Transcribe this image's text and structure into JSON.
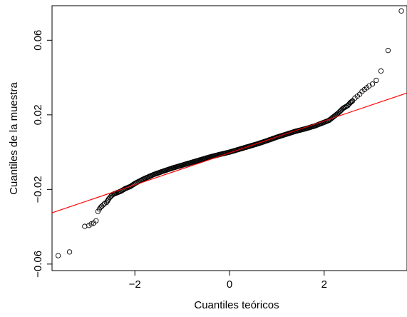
{
  "chart_data": {
    "type": "scatter",
    "title": "",
    "xlabel": "Cuantiles teóricos",
    "ylabel": "Cuantiles de la muestra",
    "xlim": [
      -3.75,
      3.75
    ],
    "ylim": [
      -0.0635,
      0.0785
    ],
    "xticks": [
      -2,
      0,
      2
    ],
    "xtick_labels": [
      "−2",
      "0",
      "2"
    ],
    "yticks": [
      -0.06,
      -0.02,
      0.02,
      0.06
    ],
    "ytick_labels": [
      "−0.06",
      "−0.02",
      "0.02",
      "0.06"
    ],
    "grid": false,
    "legend": "none",
    "point_color": "#000000",
    "line_color": "#ff0000",
    "reference_line": {
      "slope": 0.00856,
      "intercept": -0.0004
    },
    "points": {
      "x": [
        -3.62,
        -3.38,
        -3.06,
        -2.97,
        -2.92,
        -2.87,
        -2.82,
        -2.78,
        -2.75,
        -2.72,
        -2.7,
        -2.67,
        -2.64,
        -2.6,
        -2.55,
        -2.5,
        -2.45,
        -2.4,
        -2.3,
        -2.2,
        -2.1,
        -2.0,
        -1.9,
        -1.8,
        -1.6,
        -1.4,
        -1.2,
        -1.0,
        -0.8,
        -0.6,
        -0.4,
        -0.2,
        0.0,
        0.2,
        0.4,
        0.6,
        0.8,
        1.0,
        1.2,
        1.4,
        1.6,
        1.8,
        2.0,
        2.1,
        2.2,
        2.3,
        2.4,
        2.5,
        2.55,
        2.6,
        2.65,
        2.7,
        2.75,
        2.8,
        2.85,
        2.9,
        2.95,
        3.02,
        3.1,
        3.2,
        3.35,
        3.63
      ],
      "y": [
        -0.0555,
        -0.0535,
        -0.0398,
        -0.0393,
        -0.0385,
        -0.038,
        -0.0368,
        -0.0318,
        -0.0305,
        -0.0295,
        -0.029,
        -0.0283,
        -0.0275,
        -0.027,
        -0.025,
        -0.0235,
        -0.0225,
        -0.022,
        -0.021,
        -0.0195,
        -0.0185,
        -0.0168,
        -0.0155,
        -0.0142,
        -0.012,
        -0.0102,
        -0.0085,
        -0.007,
        -0.0055,
        -0.004,
        -0.0025,
        -0.0012,
        0.0,
        0.0015,
        0.003,
        0.0045,
        0.0062,
        0.008,
        0.0096,
        0.0112,
        0.0125,
        0.014,
        0.016,
        0.017,
        0.019,
        0.021,
        0.0235,
        0.025,
        0.0265,
        0.0275,
        0.029,
        0.03,
        0.031,
        0.0325,
        0.0335,
        0.0345,
        0.0355,
        0.0365,
        0.0385,
        0.0435,
        0.0545,
        0.0757
      ]
    }
  }
}
